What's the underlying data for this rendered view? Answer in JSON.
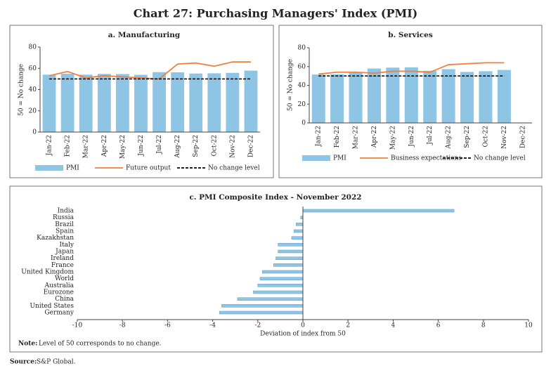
{
  "title": "Chart 27: Purchasing Managers' Index (PMI)",
  "note_label": "Note:",
  "note": "Level of 50 corresponds to no change.",
  "source_label": "Source:",
  "source": "S&P Global.",
  "chart_data": [
    {
      "type": "combo",
      "title": "a. Manufacturing",
      "ylabel": "50 = No change",
      "categories": [
        "Jan-22",
        "Feb-22",
        "Mar-22",
        "Apr-22",
        "May-22",
        "Jun-22",
        "Jul-22",
        "Aug-22",
        "Sep-22",
        "Oct-22",
        "Nov-22",
        "Dec-22"
      ],
      "ylim": [
        0,
        80
      ],
      "yticks": [
        0,
        20,
        40,
        60,
        80
      ],
      "series": [
        {
          "name": "PMI",
          "mark": "bar",
          "color": "#8ec4e4",
          "values": [
            54.0,
            54.9,
            54.0,
            54.7,
            54.6,
            53.9,
            56.4,
            56.2,
            55.1,
            55.3,
            55.7,
            57.8
          ]
        },
        {
          "name": "Future output",
          "mark": "line",
          "color": "#f07f3c",
          "values": [
            53,
            57,
            51,
            53,
            52,
            51,
            50,
            64,
            65,
            62,
            66,
            66
          ]
        },
        {
          "name": "No change level",
          "mark": "line",
          "dashed": true,
          "color": "#000000",
          "values": [
            50,
            50,
            50,
            50,
            50,
            50,
            50,
            50,
            50,
            50,
            50,
            50
          ]
        }
      ]
    },
    {
      "type": "combo",
      "title": "b. Services",
      "ylabel": "50 = No change",
      "categories": [
        "Jan-22",
        "Feb-22",
        "Mar-22",
        "Apr-22",
        "May-22",
        "Jun-22",
        "Jul-22",
        "Aug-22",
        "Sep-22",
        "Oct-22",
        "Nov-22",
        "Dec-22"
      ],
      "ylim": [
        0,
        80
      ],
      "yticks": [
        0,
        20,
        40,
        60,
        80
      ],
      "series": [
        {
          "name": "PMI",
          "mark": "bar",
          "color": "#8ec4e4",
          "values": [
            51.5,
            51.8,
            53.6,
            57.9,
            58.9,
            59.2,
            55.5,
            57.2,
            54.3,
            55.1,
            56.4,
            null
          ]
        },
        {
          "name": "Business expectations",
          "mark": "line",
          "color": "#f07f3c",
          "values": [
            52,
            54,
            54,
            53,
            55,
            55,
            54,
            62,
            63,
            64,
            64,
            null
          ]
        },
        {
          "name": "No change level",
          "mark": "line",
          "dashed": true,
          "color": "#000000",
          "values": [
            50,
            50,
            50,
            50,
            50,
            50,
            50,
            50,
            50,
            50,
            50,
            null
          ]
        }
      ]
    },
    {
      "type": "hbar",
      "title": "c. PMI Composite Index - November 2022",
      "xlabel": "Deviation of index from 50",
      "categories": [
        "India",
        "Russia",
        "Brazil",
        "Spain",
        "Kazakhstan",
        "Italy",
        "Japan",
        "Ireland",
        "France",
        "United Kingdom",
        "World",
        "Australia",
        "Eurozone",
        "China",
        "United States",
        "Germany"
      ],
      "values": [
        6.7,
        -0.1,
        -0.3,
        -0.4,
        -0.5,
        -1.1,
        -1.1,
        -1.2,
        -1.3,
        -1.8,
        -1.9,
        -2.0,
        -2.2,
        -2.9,
        -3.6,
        -3.7
      ],
      "color": "#8ec4e4",
      "xlim": [
        -10,
        10
      ],
      "xticks": [
        -10,
        -8,
        -6,
        -4,
        -2,
        0,
        2,
        4,
        6,
        8,
        10
      ]
    }
  ]
}
